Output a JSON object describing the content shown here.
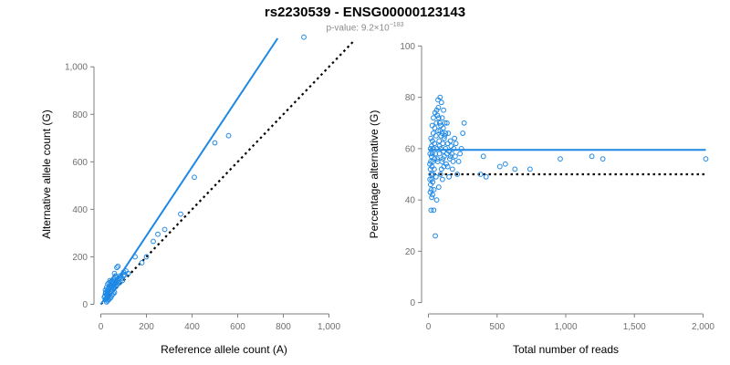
{
  "chart": {
    "title": "rs2230539 - ENSG00000123143",
    "pvalue_prefix": "p-value: 9.2×10",
    "pvalue_exp": "−183"
  },
  "chart_data": [
    {
      "type": "scatter",
      "xlabel": "Reference allele count (A)",
      "ylabel": "Alternative allele count (G)",
      "xlim": [
        -30,
        1110
      ],
      "ylim": [
        -25,
        1120
      ],
      "xticks": [
        0,
        200,
        400,
        600,
        800,
        1000
      ],
      "xtick_labels": [
        "0",
        "200",
        "400",
        "600",
        "800",
        "1,000"
      ],
      "yticks": [
        0,
        200,
        400,
        600,
        800,
        1000
      ],
      "ytick_labels": [
        "0",
        "200",
        "400",
        "600",
        "800",
        "1,000"
      ],
      "fit_line": {
        "x": [
          0,
          775
        ],
        "y": [
          0,
          1120
        ]
      },
      "reference_line": {
        "x": [
          0,
          1110
        ],
        "y": [
          0,
          1110
        ]
      },
      "points": [
        [
          890,
          1125
        ],
        [
          560,
          710
        ],
        [
          500,
          680
        ],
        [
          410,
          535
        ],
        [
          350,
          380
        ],
        [
          280,
          315
        ],
        [
          250,
          295
        ],
        [
          230,
          265
        ],
        [
          200,
          200
        ],
        [
          180,
          175
        ],
        [
          150,
          200
        ],
        [
          120,
          130
        ],
        [
          110,
          140
        ],
        [
          100,
          120
        ],
        [
          95,
          100
        ],
        [
          80,
          110
        ],
        [
          75,
          160
        ],
        [
          70,
          155
        ],
        [
          65,
          120
        ],
        [
          60,
          130
        ],
        [
          55,
          105
        ],
        [
          50,
          100
        ],
        [
          45,
          95
        ],
        [
          40,
          100
        ],
        [
          35,
          90
        ],
        [
          30,
          85
        ],
        [
          25,
          70
        ],
        [
          20,
          60
        ],
        [
          20,
          45
        ],
        [
          25,
          40
        ],
        [
          30,
          50
        ],
        [
          35,
          60
        ],
        [
          40,
          70
        ],
        [
          45,
          80
        ],
        [
          50,
          75
        ],
        [
          55,
          70
        ],
        [
          60,
          85
        ],
        [
          65,
          90
        ],
        [
          70,
          95
        ],
        [
          75,
          100
        ],
        [
          80,
          90
        ],
        [
          85,
          95
        ],
        [
          90,
          110
        ],
        [
          15,
          30
        ],
        [
          18,
          35
        ],
        [
          22,
          50
        ],
        [
          28,
          55
        ],
        [
          32,
          65
        ],
        [
          38,
          75
        ],
        [
          42,
          85
        ],
        [
          48,
          90
        ],
        [
          52,
          95
        ],
        [
          58,
          110
        ],
        [
          62,
          115
        ],
        [
          20,
          20
        ],
        [
          25,
          25
        ],
        [
          30,
          30
        ],
        [
          35,
          35
        ],
        [
          40,
          45
        ],
        [
          45,
          55
        ],
        [
          50,
          60
        ],
        [
          55,
          65
        ],
        [
          60,
          70
        ],
        [
          65,
          75
        ],
        [
          30,
          15
        ],
        [
          35,
          20
        ],
        [
          40,
          25
        ],
        [
          45,
          30
        ],
        [
          25,
          10
        ],
        [
          50,
          40
        ],
        [
          55,
          45
        ],
        [
          60,
          50
        ],
        [
          70,
          80
        ],
        [
          85,
          120
        ],
        [
          100,
          135
        ],
        [
          105,
          125
        ]
      ]
    },
    {
      "type": "scatter",
      "xlabel": "Total number of reads",
      "ylabel": "Percentage alternative (G)",
      "xlim": [
        -50,
        2050
      ],
      "ylim": [
        -3,
        103
      ],
      "xticks": [
        0,
        500,
        1000,
        1500,
        2000
      ],
      "xtick_labels": [
        "0",
        "500",
        "1,000",
        "1,500",
        "2,000"
      ],
      "yticks": [
        0,
        20,
        40,
        60,
        80,
        100
      ],
      "ytick_labels": [
        "0",
        "20",
        "40",
        "60",
        "80",
        "100"
      ],
      "fit_line": {
        "x": [
          0,
          2020
        ],
        "y": [
          59.5,
          59.5
        ]
      },
      "reference_line": {
        "x": [
          0,
          2020
        ],
        "y": [
          50,
          50
        ]
      },
      "points": [
        [
          2020,
          56
        ],
        [
          1270,
          56
        ],
        [
          1190,
          57
        ],
        [
          960,
          56
        ],
        [
          740,
          52
        ],
        [
          630,
          52
        ],
        [
          560,
          54
        ],
        [
          520,
          53
        ],
        [
          400,
          57
        ],
        [
          420,
          49
        ],
        [
          380,
          50
        ],
        [
          260,
          70
        ],
        [
          250,
          66
        ],
        [
          240,
          60
        ],
        [
          230,
          58
        ],
        [
          220,
          55
        ],
        [
          210,
          50
        ],
        [
          200,
          62
        ],
        [
          195,
          57
        ],
        [
          190,
          64
        ],
        [
          185,
          60
        ],
        [
          180,
          55
        ],
        [
          175,
          52
        ],
        [
          170,
          58
        ],
        [
          165,
          61
        ],
        [
          160,
          63
        ],
        [
          155,
          56
        ],
        [
          150,
          59
        ],
        [
          145,
          66
        ],
        [
          140,
          62
        ],
        [
          135,
          58
        ],
        [
          130,
          54
        ],
        [
          125,
          60
        ],
        [
          120,
          70
        ],
        [
          118,
          65
        ],
        [
          115,
          57
        ],
        [
          112,
          53
        ],
        [
          110,
          75
        ],
        [
          108,
          68
        ],
        [
          105,
          62
        ],
        [
          102,
          48
        ],
        [
          100,
          72
        ],
        [
          98,
          55
        ],
        [
          95,
          78
        ],
        [
          92,
          65
        ],
        [
          90,
          60
        ],
        [
          88,
          50
        ],
        [
          85,
          80
        ],
        [
          82,
          70
        ],
        [
          80,
          58
        ],
        [
          78,
          63
        ],
        [
          75,
          45
        ],
        [
          72,
          76
        ],
        [
          70,
          67
        ],
        [
          68,
          55
        ],
        [
          65,
          73
        ],
        [
          62,
          60
        ],
        [
          60,
          40
        ],
        [
          58,
          70
        ],
        [
          55,
          65
        ],
        [
          52,
          58
        ],
        [
          50,
          26
        ],
        [
          48,
          74
        ],
        [
          46,
          68
        ],
        [
          44,
          62
        ],
        [
          42,
          52
        ],
        [
          40,
          44
        ],
        [
          38,
          36
        ],
        [
          36,
          72
        ],
        [
          35,
          66
        ],
        [
          34,
          60
        ],
        [
          33,
          55
        ],
        [
          32,
          50
        ],
        [
          31,
          47
        ],
        [
          30,
          42
        ],
        [
          29,
          63
        ],
        [
          28,
          58
        ],
        [
          27,
          69
        ],
        [
          26,
          53
        ],
        [
          25,
          48
        ],
        [
          24,
          41
        ],
        [
          23,
          61
        ],
        [
          22,
          57
        ],
        [
          21,
          44
        ],
        [
          20,
          50
        ],
        [
          19,
          36
        ],
        [
          18,
          64
        ],
        [
          17,
          55
        ],
        [
          16,
          46
        ],
        [
          15,
          60
        ],
        [
          14,
          52
        ],
        [
          13,
          43
        ],
        [
          12,
          58
        ],
        [
          11,
          48
        ],
        [
          10,
          54
        ],
        [
          95,
          52
        ],
        [
          105,
          56
        ],
        [
          115,
          64
        ],
        [
          125,
          66
        ],
        [
          135,
          70
        ],
        [
          140,
          53
        ],
        [
          150,
          49
        ],
        [
          160,
          57
        ],
        [
          75,
          72
        ],
        [
          85,
          67
        ],
        [
          90,
          69
        ],
        [
          65,
          56
        ],
        [
          55,
          49
        ],
        [
          45,
          56
        ],
        [
          60,
          75
        ],
        [
          70,
          79
        ],
        [
          80,
          61
        ],
        [
          100,
          66
        ],
        [
          110,
          59
        ]
      ]
    }
  ]
}
